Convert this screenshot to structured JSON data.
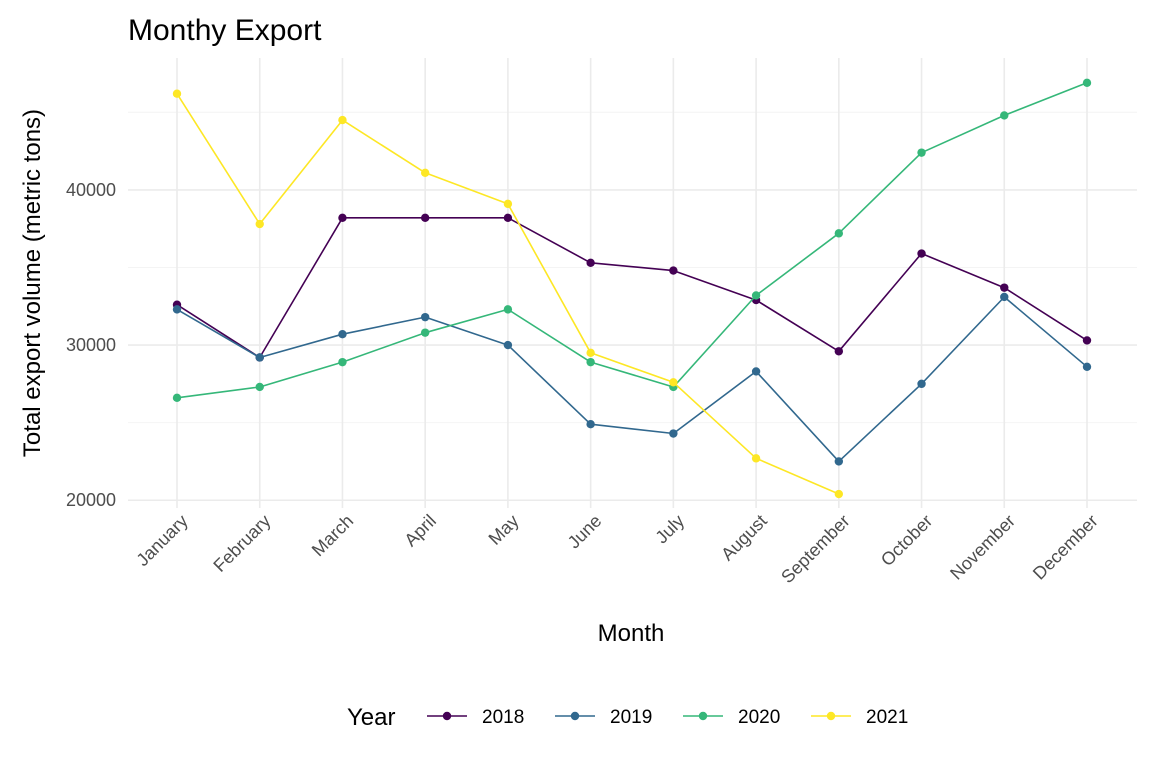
{
  "chart_data": {
    "type": "line",
    "title": "Monthy Export",
    "xlabel": "Month",
    "ylabel": "Total export volume (metric tons)",
    "categories": [
      "January",
      "February",
      "March",
      "April",
      "May",
      "June",
      "July",
      "August",
      "September",
      "October",
      "November",
      "December"
    ],
    "ylim": [
      19500,
      48500
    ],
    "yticks": [
      20000,
      30000,
      40000
    ],
    "grid": true,
    "legend": {
      "title": "Year",
      "position": "bottom"
    },
    "series": [
      {
        "name": "2018",
        "color": "#440154",
        "values": [
          32600,
          29200,
          38200,
          38200,
          38200,
          35300,
          34800,
          32900,
          29600,
          35900,
          33700,
          30300
        ]
      },
      {
        "name": "2019",
        "color": "#31688E",
        "values": [
          32300,
          29200,
          30700,
          31800,
          30000,
          24900,
          24300,
          28300,
          22500,
          27500,
          33100,
          28600
        ]
      },
      {
        "name": "2020",
        "color": "#35B779",
        "values": [
          26600,
          27300,
          28900,
          30800,
          32300,
          28900,
          27300,
          33200,
          37200,
          42400,
          44800,
          46900
        ]
      },
      {
        "name": "2021",
        "color": "#FDE725",
        "values": [
          46200,
          37800,
          44500,
          41100,
          39100,
          29500,
          27600,
          22700,
          20400,
          null,
          null,
          null
        ]
      }
    ]
  }
}
